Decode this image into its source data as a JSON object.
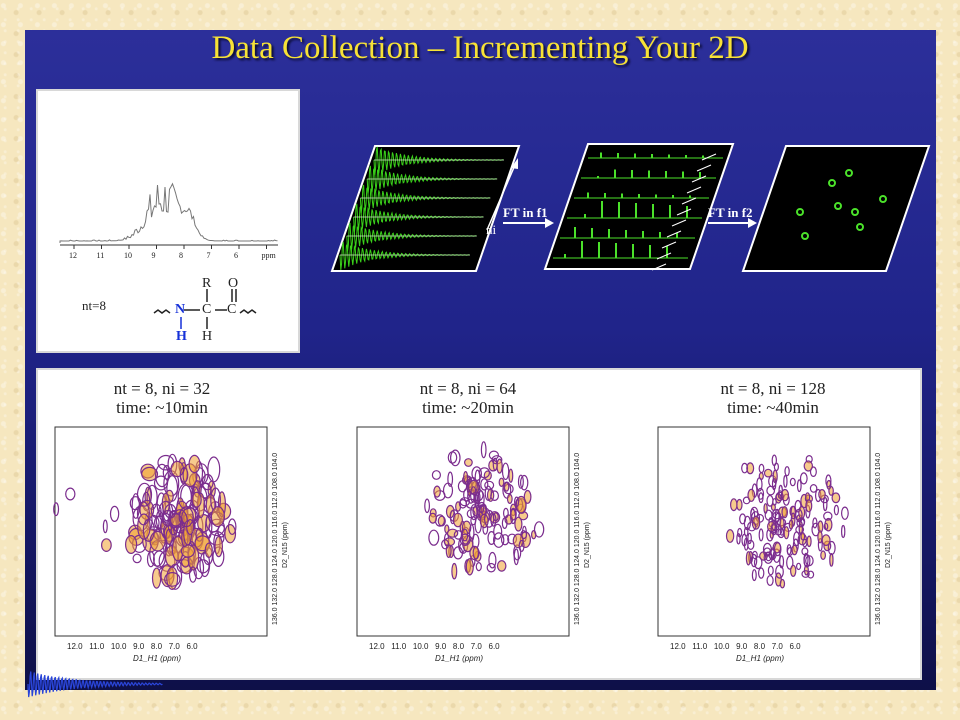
{
  "title": "Data Collection – Incrementing Your 2D",
  "spectrum_1d": {
    "ticks": [
      "12",
      "11",
      "10",
      "9",
      "8",
      "7",
      "6",
      "ppm"
    ],
    "nt_label": "nt=8"
  },
  "structure": {
    "atoms": {
      "N": "N",
      "C1": "C",
      "C2": "C",
      "R": "R",
      "O": "O",
      "H_bottom": "H",
      "H_n": "H"
    }
  },
  "workflow": {
    "ni_label": "ni",
    "ft1_label": "FT in f1",
    "ft2_label": "FT in f2"
  },
  "plots": [
    {
      "title_line1": "nt = 8, ni = 32",
      "title_line2": "time: ~10min"
    },
    {
      "title_line1": "nt = 8, ni = 64",
      "title_line2": "time: ~20min"
    },
    {
      "title_line1": "nt = 8, ni = 128",
      "title_line2": "time: ~40min"
    }
  ],
  "axes": {
    "x_ticks": "12.0   11.0   10.0   9.0   8.0   7.0   6.0",
    "x_label": "D1_H1 (ppm)",
    "y_ticks": "136.0 132.0 128.0 124.0 120.0 116.0 112.0 108.0 104.0",
    "y_label": "D2_N15 (ppm)"
  },
  "colors": {
    "title": "#f7e236",
    "fid_green": "#3ad11a",
    "peak_green": "#4be22a",
    "contour_purple": "#7b2d8e",
    "contour_orange": "#f0a030"
  }
}
